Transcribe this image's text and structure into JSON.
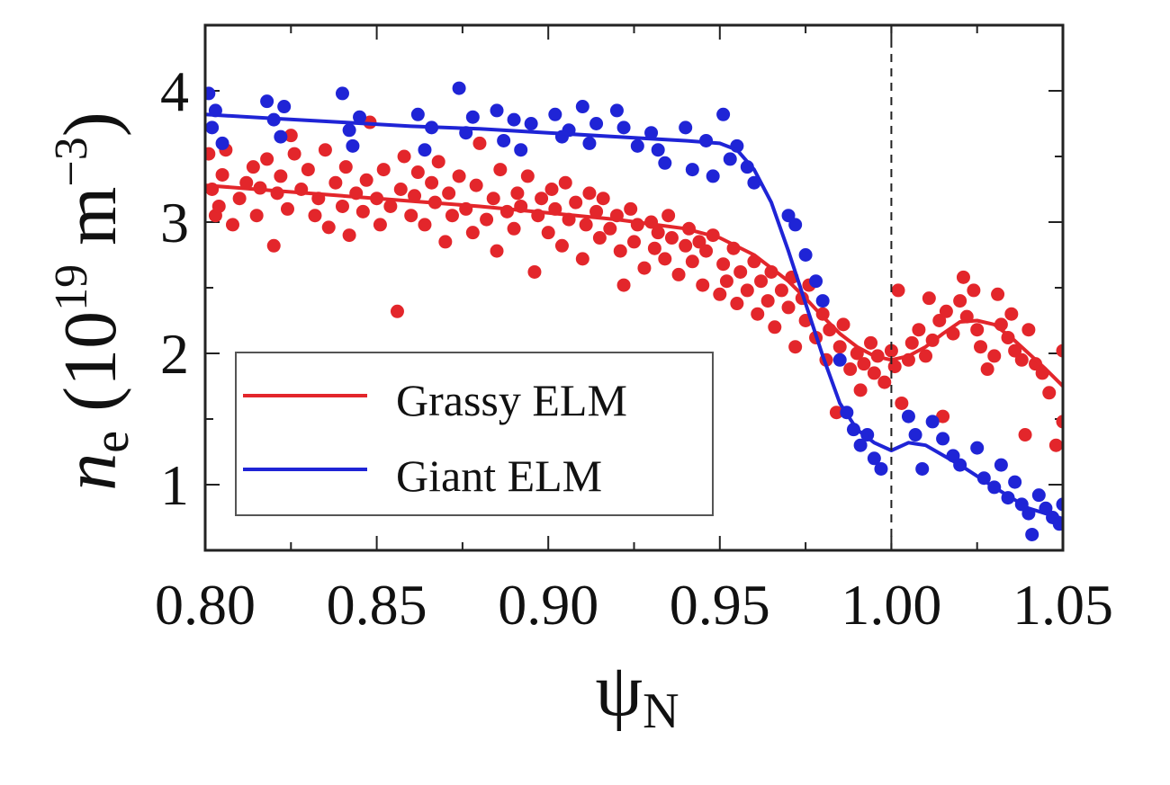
{
  "chart_data": {
    "type": "scatter",
    "xlabel": {
      "main": "ψ",
      "sub": "N"
    },
    "ylabel": {
      "main": "n",
      "sub": "e",
      "unit_prefix": " (10",
      "exp1": "19",
      "unit_mid": " m",
      "exp2": "−3",
      "unit_suffix": ")"
    },
    "xlim": [
      0.8,
      1.05
    ],
    "ylim": [
      0.5,
      4.5
    ],
    "x_ticks": [
      {
        "value": 0.8,
        "label": "0.80"
      },
      {
        "value": 0.85,
        "label": "0.85"
      },
      {
        "value": 0.9,
        "label": "0.90"
      },
      {
        "value": 0.95,
        "label": "0.95"
      },
      {
        "value": 1.0,
        "label": "1.00"
      },
      {
        "value": 1.05,
        "label": "1.05"
      }
    ],
    "y_ticks": [
      {
        "value": 1,
        "label": "1"
      },
      {
        "value": 2,
        "label": "2"
      },
      {
        "value": 3,
        "label": "3"
      },
      {
        "value": 4,
        "label": "4"
      }
    ],
    "vertical_reference_line": 1.0,
    "grid": false,
    "legend_position": "bottom-left",
    "series": [
      {
        "name": "Grassy ELM",
        "color": "#e3262b",
        "fit": {
          "x": [
            0.8,
            0.82,
            0.84,
            0.86,
            0.88,
            0.9,
            0.92,
            0.94,
            0.95,
            0.96,
            0.97,
            0.975,
            0.98,
            0.985,
            0.99,
            0.995,
            1.0,
            1.005,
            1.01,
            1.015,
            1.02,
            1.025,
            1.03,
            1.035,
            1.04,
            1.045,
            1.05
          ],
          "y": [
            3.28,
            3.24,
            3.2,
            3.16,
            3.12,
            3.07,
            3.02,
            2.95,
            2.88,
            2.75,
            2.55,
            2.42,
            2.28,
            2.15,
            2.05,
            1.98,
            1.95,
            1.98,
            2.05,
            2.15,
            2.24,
            2.25,
            2.22,
            2.12,
            2.0,
            1.88,
            1.75
          ]
        },
        "points": [
          [
            0.801,
            3.52
          ],
          [
            0.802,
            3.25
          ],
          [
            0.803,
            3.05
          ],
          [
            0.804,
            3.12
          ],
          [
            0.805,
            3.36
          ],
          [
            0.806,
            3.55
          ],
          [
            0.808,
            2.98
          ],
          [
            0.81,
            3.18
          ],
          [
            0.812,
            3.3
          ],
          [
            0.814,
            3.42
          ],
          [
            0.815,
            3.05
          ],
          [
            0.816,
            3.26
          ],
          [
            0.818,
            3.48
          ],
          [
            0.82,
            2.82
          ],
          [
            0.821,
            3.22
          ],
          [
            0.822,
            3.35
          ],
          [
            0.824,
            3.1
          ],
          [
            0.825,
            3.66
          ],
          [
            0.826,
            3.52
          ],
          [
            0.828,
            3.25
          ],
          [
            0.83,
            3.4
          ],
          [
            0.832,
            3.05
          ],
          [
            0.833,
            3.18
          ],
          [
            0.835,
            3.55
          ],
          [
            0.836,
            2.96
          ],
          [
            0.838,
            3.3
          ],
          [
            0.84,
            3.12
          ],
          [
            0.841,
            3.42
          ],
          [
            0.842,
            2.9
          ],
          [
            0.844,
            3.22
          ],
          [
            0.846,
            3.08
          ],
          [
            0.847,
            3.32
          ],
          [
            0.848,
            3.76
          ],
          [
            0.85,
            3.18
          ],
          [
            0.851,
            2.98
          ],
          [
            0.852,
            3.4
          ],
          [
            0.854,
            3.12
          ],
          [
            0.856,
            2.32
          ],
          [
            0.857,
            3.25
          ],
          [
            0.858,
            3.5
          ],
          [
            0.86,
            3.05
          ],
          [
            0.861,
            3.2
          ],
          [
            0.862,
            3.38
          ],
          [
            0.864,
            2.98
          ],
          [
            0.866,
            3.3
          ],
          [
            0.867,
            3.15
          ],
          [
            0.868,
            3.46
          ],
          [
            0.87,
            2.85
          ],
          [
            0.871,
            3.22
          ],
          [
            0.872,
            3.05
          ],
          [
            0.874,
            3.35
          ],
          [
            0.876,
            3.1
          ],
          [
            0.878,
            2.92
          ],
          [
            0.879,
            3.28
          ],
          [
            0.88,
            3.6
          ],
          [
            0.882,
            3.02
          ],
          [
            0.884,
            3.18
          ],
          [
            0.885,
            2.78
          ],
          [
            0.886,
            3.4
          ],
          [
            0.888,
            3.08
          ],
          [
            0.89,
            2.95
          ],
          [
            0.891,
            3.22
          ],
          [
            0.892,
            3.12
          ],
          [
            0.894,
            3.35
          ],
          [
            0.896,
            2.62
          ],
          [
            0.897,
            3.05
          ],
          [
            0.898,
            3.18
          ],
          [
            0.9,
            2.92
          ],
          [
            0.901,
            3.25
          ],
          [
            0.902,
            3.1
          ],
          [
            0.904,
            2.82
          ],
          [
            0.905,
            3.3
          ],
          [
            0.906,
            3.02
          ],
          [
            0.908,
            3.15
          ],
          [
            0.91,
            2.72
          ],
          [
            0.911,
            2.98
          ],
          [
            0.912,
            3.22
          ],
          [
            0.914,
            3.08
          ],
          [
            0.915,
            2.88
          ],
          [
            0.916,
            3.18
          ],
          [
            0.918,
            2.95
          ],
          [
            0.92,
            3.05
          ],
          [
            0.921,
            2.78
          ],
          [
            0.922,
            2.52
          ],
          [
            0.924,
            3.1
          ],
          [
            0.925,
            2.85
          ],
          [
            0.926,
            2.98
          ],
          [
            0.928,
            2.65
          ],
          [
            0.93,
            3.0
          ],
          [
            0.931,
            2.8
          ],
          [
            0.932,
            2.92
          ],
          [
            0.934,
            2.72
          ],
          [
            0.935,
            3.05
          ],
          [
            0.936,
            2.88
          ],
          [
            0.938,
            2.6
          ],
          [
            0.94,
            2.82
          ],
          [
            0.941,
            2.95
          ],
          [
            0.942,
            2.7
          ],
          [
            0.944,
            2.85
          ],
          [
            0.945,
            2.52
          ],
          [
            0.946,
            2.78
          ],
          [
            0.948,
            2.9
          ],
          [
            0.95,
            2.45
          ],
          [
            0.951,
            2.68
          ],
          [
            0.952,
            2.55
          ],
          [
            0.954,
            2.8
          ],
          [
            0.955,
            2.38
          ],
          [
            0.956,
            2.62
          ],
          [
            0.958,
            2.48
          ],
          [
            0.96,
            2.7
          ],
          [
            0.961,
            2.3
          ],
          [
            0.962,
            2.55
          ],
          [
            0.964,
            2.4
          ],
          [
            0.965,
            2.62
          ],
          [
            0.966,
            2.2
          ],
          [
            0.968,
            2.48
          ],
          [
            0.97,
            2.35
          ],
          [
            0.971,
            2.58
          ],
          [
            0.972,
            2.05
          ],
          [
            0.974,
            2.42
          ],
          [
            0.975,
            2.25
          ],
          [
            0.976,
            2.52
          ],
          [
            0.978,
            2.12
          ],
          [
            0.98,
            2.3
          ],
          [
            0.981,
            1.95
          ],
          [
            0.982,
            2.18
          ],
          [
            0.984,
            1.55
          ],
          [
            0.985,
            2.05
          ],
          [
            0.986,
            2.22
          ],
          [
            0.988,
            1.88
          ],
          [
            0.99,
            2.0
          ],
          [
            0.991,
            1.72
          ],
          [
            0.992,
            1.92
          ],
          [
            0.994,
            2.08
          ],
          [
            0.995,
            1.85
          ],
          [
            0.996,
            1.98
          ],
          [
            0.998,
            1.78
          ],
          [
            1.0,
            2.02
          ],
          [
            1.001,
            1.9
          ],
          [
            1.002,
            2.48
          ],
          [
            1.003,
            1.62
          ],
          [
            1.005,
            1.95
          ],
          [
            1.006,
            2.08
          ],
          [
            1.008,
            2.18
          ],
          [
            1.01,
            1.98
          ],
          [
            1.011,
            2.42
          ],
          [
            1.012,
            2.1
          ],
          [
            1.014,
            2.25
          ],
          [
            1.015,
            1.52
          ],
          [
            1.016,
            2.32
          ],
          [
            1.018,
            2.15
          ],
          [
            1.02,
            2.4
          ],
          [
            1.021,
            2.58
          ],
          [
            1.022,
            2.28
          ],
          [
            1.024,
            2.48
          ],
          [
            1.025,
            2.18
          ],
          [
            1.026,
            2.05
          ],
          [
            1.028,
            1.88
          ],
          [
            1.03,
            1.98
          ],
          [
            1.031,
            2.45
          ],
          [
            1.032,
            2.22
          ],
          [
            1.034,
            2.12
          ],
          [
            1.035,
            2.3
          ],
          [
            1.036,
            2.02
          ],
          [
            1.038,
            1.95
          ],
          [
            1.039,
            1.38
          ],
          [
            1.04,
            2.18
          ],
          [
            1.042,
            1.92
          ],
          [
            1.044,
            1.85
          ],
          [
            1.046,
            1.7
          ],
          [
            1.048,
            1.3
          ],
          [
            1.05,
            1.48
          ],
          [
            1.05,
            2.02
          ]
        ]
      },
      {
        "name": "Giant ELM",
        "color": "#1f24d6",
        "fit": {
          "x": [
            0.8,
            0.82,
            0.84,
            0.86,
            0.88,
            0.9,
            0.92,
            0.94,
            0.95,
            0.955,
            0.96,
            0.965,
            0.97,
            0.975,
            0.98,
            0.985,
            0.99,
            0.995,
            1.0,
            1.005,
            1.01,
            1.02,
            1.03,
            1.04,
            1.05
          ],
          "y": [
            3.82,
            3.79,
            3.76,
            3.73,
            3.71,
            3.68,
            3.65,
            3.62,
            3.6,
            3.55,
            3.4,
            3.15,
            2.78,
            2.38,
            1.98,
            1.62,
            1.42,
            1.32,
            1.26,
            1.32,
            1.3,
            1.15,
            0.98,
            0.82,
            0.74
          ]
        },
        "points": [
          [
            0.801,
            3.98
          ],
          [
            0.802,
            3.72
          ],
          [
            0.803,
            3.85
          ],
          [
            0.805,
            3.6
          ],
          [
            0.818,
            3.92
          ],
          [
            0.82,
            3.78
          ],
          [
            0.822,
            3.65
          ],
          [
            0.823,
            3.88
          ],
          [
            0.84,
            3.98
          ],
          [
            0.842,
            3.7
          ],
          [
            0.843,
            3.58
          ],
          [
            0.845,
            3.8
          ],
          [
            0.862,
            3.82
          ],
          [
            0.864,
            3.55
          ],
          [
            0.866,
            3.72
          ],
          [
            0.874,
            4.02
          ],
          [
            0.876,
            3.68
          ],
          [
            0.878,
            3.8
          ],
          [
            0.885,
            3.85
          ],
          [
            0.887,
            3.62
          ],
          [
            0.89,
            3.78
          ],
          [
            0.892,
            3.55
          ],
          [
            0.895,
            3.75
          ],
          [
            0.902,
            3.82
          ],
          [
            0.904,
            3.65
          ],
          [
            0.906,
            3.7
          ],
          [
            0.91,
            3.88
          ],
          [
            0.912,
            3.6
          ],
          [
            0.914,
            3.75
          ],
          [
            0.92,
            3.85
          ],
          [
            0.922,
            3.72
          ],
          [
            0.926,
            3.58
          ],
          [
            0.93,
            3.68
          ],
          [
            0.932,
            3.55
          ],
          [
            0.934,
            3.45
          ],
          [
            0.94,
            3.72
          ],
          [
            0.942,
            3.4
          ],
          [
            0.946,
            3.62
          ],
          [
            0.948,
            3.35
          ],
          [
            0.951,
            3.82
          ],
          [
            0.953,
            3.48
          ],
          [
            0.955,
            3.58
          ],
          [
            0.958,
            3.42
          ],
          [
            0.96,
            3.3
          ],
          [
            0.97,
            3.05
          ],
          [
            0.972,
            2.98
          ],
          [
            0.975,
            2.75
          ],
          [
            0.978,
            2.55
          ],
          [
            0.98,
            2.4
          ],
          [
            0.985,
            1.95
          ],
          [
            0.987,
            1.55
          ],
          [
            0.989,
            1.42
          ],
          [
            0.991,
            1.3
          ],
          [
            0.993,
            1.38
          ],
          [
            0.995,
            1.2
          ],
          [
            0.997,
            1.12
          ],
          [
            1.005,
            1.52
          ],
          [
            1.007,
            1.38
          ],
          [
            1.009,
            1.12
          ],
          [
            1.012,
            1.48
          ],
          [
            1.015,
            1.35
          ],
          [
            1.018,
            1.22
          ],
          [
            1.02,
            1.15
          ],
          [
            1.025,
            1.28
          ],
          [
            1.027,
            1.05
          ],
          [
            1.03,
            0.98
          ],
          [
            1.032,
            1.15
          ],
          [
            1.034,
            0.9
          ],
          [
            1.036,
            1.02
          ],
          [
            1.038,
            0.85
          ],
          [
            1.04,
            0.78
          ],
          [
            1.041,
            0.62
          ],
          [
            1.043,
            0.92
          ],
          [
            1.045,
            0.82
          ],
          [
            1.047,
            0.75
          ],
          [
            1.049,
            0.7
          ],
          [
            1.05,
            0.85
          ]
        ]
      }
    ]
  }
}
